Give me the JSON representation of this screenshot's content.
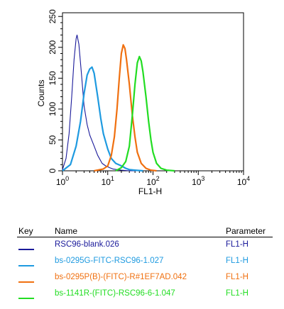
{
  "chart_data": {
    "type": "line",
    "xlabel": "FL1-H",
    "ylabel": "Counts",
    "x_scale": "log",
    "xlim": [
      1,
      10000
    ],
    "ylim": [
      0,
      256
    ],
    "x_ticks": [
      1,
      10,
      100,
      1000,
      10000
    ],
    "x_tick_labels": [
      {
        "base": "10",
        "exp": "0"
      },
      {
        "base": "10",
        "exp": "1"
      },
      {
        "base": "10",
        "exp": "2"
      },
      {
        "base": "10",
        "exp": "3"
      },
      {
        "base": "10",
        "exp": "4"
      }
    ],
    "y_ticks": [
      0,
      50,
      100,
      150,
      200,
      250
    ],
    "y_tick_labels": [
      "0",
      "50",
      "100",
      "150",
      "200",
      "250"
    ],
    "grid": false,
    "series": [
      {
        "name": "RSC96-blank.026",
        "color": "#1a1a9a",
        "x": [
          1.0,
          1.2,
          1.4,
          1.6,
          1.8,
          2.0,
          2.1,
          2.3,
          2.6,
          3.0,
          3.5,
          4.0,
          5.0,
          6.0,
          7.5,
          9.0,
          11.0,
          13.0,
          16.0,
          20.0,
          30.0,
          50.0
        ],
        "y": [
          2,
          20,
          60,
          120,
          180,
          214,
          220,
          205,
          160,
          105,
          75,
          58,
          40,
          25,
          12,
          8,
          5,
          3,
          2,
          1,
          0,
          0
        ]
      },
      {
        "name": "bs-0295G-FITC-RSC96-1.027",
        "color": "#1e9ae0",
        "x": [
          1.0,
          1.5,
          2.0,
          2.5,
          3.0,
          3.5,
          4.0,
          4.5,
          5.0,
          6.0,
          7.0,
          8.0,
          10.0,
          12.0,
          15.0,
          20.0,
          25.0,
          30.0,
          40.0,
          60.0
        ],
        "y": [
          0,
          10,
          40,
          80,
          125,
          155,
          165,
          168,
          158,
          120,
          85,
          60,
          35,
          20,
          12,
          8,
          4,
          2,
          1,
          0
        ]
      },
      {
        "name": "bs-0295P(B)-(FITC)-R#1EF7AD.042",
        "color": "#f07010",
        "x": [
          5.0,
          8.0,
          10.0,
          12.0,
          14.0,
          16.0,
          18.0,
          20.0,
          22.0,
          24.0,
          26.0,
          30.0,
          35.0,
          40.0,
          45.0,
          55.0,
          70.0,
          90.0,
          120.0
        ],
        "y": [
          0,
          3,
          8,
          25,
          55,
          100,
          150,
          190,
          204,
          198,
          180,
          140,
          90,
          55,
          30,
          12,
          4,
          1,
          0
        ]
      },
      {
        "name": "bs-1141R-(FITC)-RSC96-6-1.047",
        "color": "#22dd22",
        "x": [
          15.0,
          20.0,
          25.0,
          30.0,
          35.0,
          40.0,
          45.0,
          50.0,
          55.0,
          60.0,
          70.0,
          80.0,
          90.0,
          100.0,
          120.0,
          150.0,
          200.0,
          300.0
        ],
        "y": [
          0,
          5,
          15,
          40,
          90,
          140,
          175,
          185,
          178,
          160,
          120,
          80,
          50,
          30,
          12,
          4,
          1,
          0
        ]
      }
    ]
  },
  "legend": {
    "headers": {
      "key": "Key",
      "name": "Name",
      "parameter": "Parameter"
    },
    "rows": [
      {
        "name": "RSC96-blank.026",
        "parameter": "FL1-H",
        "color": "#1a1a9a"
      },
      {
        "name": "bs-0295G-FITC-RSC96-1.027",
        "parameter": "FL1-H",
        "color": "#1e9ae0"
      },
      {
        "name": "bs-0295P(B)-(FITC)-R#1EF7AD.042",
        "parameter": "FL1-H",
        "color": "#f07010"
      },
      {
        "name": "bs-1141R-(FITC)-RSC96-6-1.047",
        "parameter": "FL1-H",
        "color": "#22dd22"
      }
    ]
  }
}
